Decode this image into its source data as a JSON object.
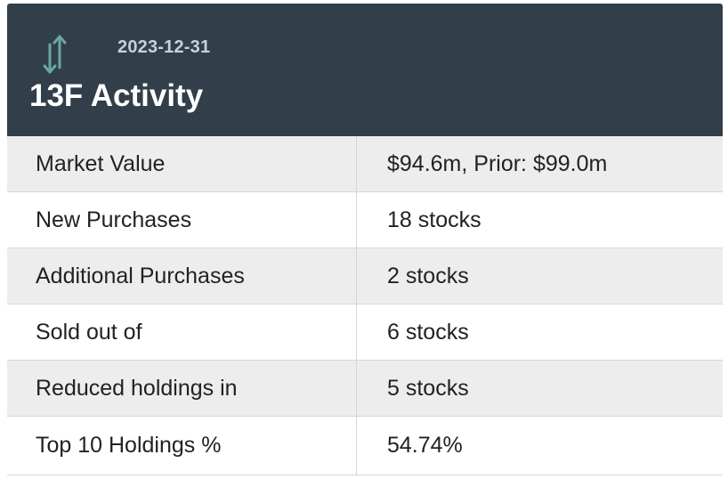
{
  "header": {
    "date": "2023-12-31",
    "title": "13F Activity",
    "icon": "up-down-arrows-icon",
    "background_color": "#323e49",
    "icon_color": "#6aa89e"
  },
  "rows": [
    {
      "label": "Market Value",
      "value": "$94.6m, Prior: $99.0m"
    },
    {
      "label": "New Purchases",
      "value": "18 stocks"
    },
    {
      "label": "Additional Purchases",
      "value": "2 stocks"
    },
    {
      "label": "Sold out of",
      "value": "6 stocks"
    },
    {
      "label": "Reduced holdings in",
      "value": "5 stocks"
    },
    {
      "label": "Top 10 Holdings %",
      "value": "54.74%"
    }
  ]
}
